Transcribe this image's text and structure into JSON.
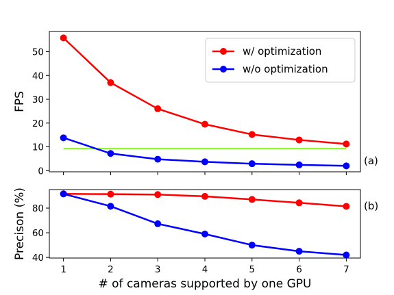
{
  "chart_data": [
    {
      "panel": "(a)",
      "type": "line",
      "x": [
        1,
        2,
        3,
        4,
        5,
        6,
        7
      ],
      "series": [
        {
          "name": "w/ optimization",
          "color": "#ff0000",
          "values": [
            55.8,
            37.0,
            26.0,
            19.5,
            15.2,
            12.9,
            11.2
          ]
        },
        {
          "name": "w/o optimization",
          "color": "#0000ff",
          "values": [
            13.8,
            7.2,
            4.8,
            3.7,
            2.9,
            2.4,
            2.0
          ]
        }
      ],
      "reference_line": {
        "color": "#7cfc00",
        "y": 9.2,
        "x_range": [
          1,
          7
        ]
      },
      "ylabel": "FPS",
      "xlabel": "",
      "xlim": [
        0.7,
        7.3
      ],
      "ylim": [
        -0.5,
        58.5
      ],
      "yticks": [
        0,
        10,
        20,
        30,
        40,
        50
      ],
      "xticks": [
        1,
        2,
        3,
        4,
        5,
        6,
        7
      ],
      "legend_position": "top-right",
      "grid": false
    },
    {
      "panel": "(b)",
      "type": "line",
      "x": [
        1,
        2,
        3,
        4,
        5,
        6,
        7
      ],
      "series": [
        {
          "name": "w/ optimization",
          "color": "#ff0000",
          "values": [
            91.5,
            91.3,
            91.0,
            89.5,
            87.0,
            84.3,
            81.4
          ]
        },
        {
          "name": "w/o optimization",
          "color": "#0000ff",
          "values": [
            91.5,
            81.5,
            67.3,
            59.0,
            50.0,
            45.0,
            42.0
          ]
        }
      ],
      "ylabel": "Precison (%)",
      "xlabel": "# of cameras supported by one GPU",
      "xlim": [
        0.7,
        7.3
      ],
      "ylim": [
        39.5,
        95
      ],
      "yticks": [
        40,
        60,
        80
      ],
      "xticks": [
        1,
        2,
        3,
        4,
        5,
        6,
        7
      ],
      "grid": false
    }
  ]
}
